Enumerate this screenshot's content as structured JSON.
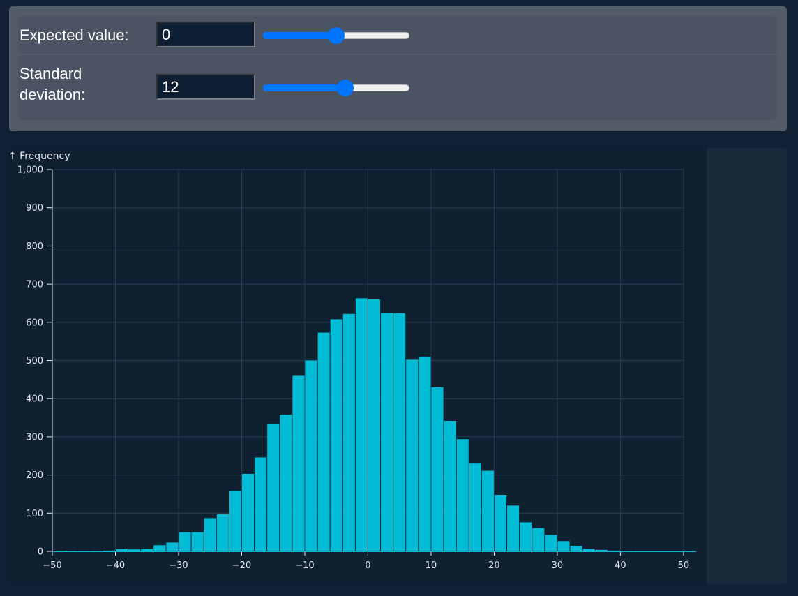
{
  "controls": {
    "mean": {
      "label": "Expected value:",
      "value": "0",
      "slider_fraction": 0.5
    },
    "sd": {
      "label": "Standard deviation:",
      "value": "12",
      "slider_fraction": 0.57
    }
  },
  "colors": {
    "bar": "#00bcd4",
    "grid": "#2c3d50",
    "axis": "#e6e9ee",
    "slider": "#0075ff"
  },
  "chart_data": {
    "type": "bar",
    "ylabel": "↑ Frequency",
    "xlim": [
      -50,
      52
    ],
    "ylim": [
      0,
      1000
    ],
    "x_ticks": [
      -50,
      -40,
      -30,
      -20,
      -10,
      0,
      10,
      20,
      30,
      40,
      50
    ],
    "x_tick_labels": [
      "−50",
      "−40",
      "−30",
      "−20",
      "−10",
      "0",
      "10",
      "20",
      "30",
      "40",
      "50"
    ],
    "y_ticks": [
      0,
      100,
      200,
      300,
      400,
      500,
      600,
      700,
      800,
      900,
      1000
    ],
    "y_tick_labels": [
      "0",
      "100",
      "200",
      "300",
      "400",
      "500",
      "600",
      "700",
      "800",
      "900",
      "1,000"
    ],
    "bin_width": 2,
    "bins": [
      {
        "x0": -48,
        "x1": -46,
        "count": 1
      },
      {
        "x0": -46,
        "x1": -44,
        "count": 1
      },
      {
        "x0": -44,
        "x1": -42,
        "count": 1
      },
      {
        "x0": -42,
        "x1": -40,
        "count": 2
      },
      {
        "x0": -40,
        "x1": -38,
        "count": 6
      },
      {
        "x0": -38,
        "x1": -36,
        "count": 5
      },
      {
        "x0": -36,
        "x1": -34,
        "count": 6
      },
      {
        "x0": -34,
        "x1": -32,
        "count": 16
      },
      {
        "x0": -32,
        "x1": -30,
        "count": 23
      },
      {
        "x0": -30,
        "x1": -28,
        "count": 50
      },
      {
        "x0": -28,
        "x1": -26,
        "count": 50
      },
      {
        "x0": -26,
        "x1": -24,
        "count": 87
      },
      {
        "x0": -24,
        "x1": -22,
        "count": 97
      },
      {
        "x0": -22,
        "x1": -20,
        "count": 158
      },
      {
        "x0": -20,
        "x1": -18,
        "count": 203
      },
      {
        "x0": -18,
        "x1": -16,
        "count": 246
      },
      {
        "x0": -16,
        "x1": -14,
        "count": 333
      },
      {
        "x0": -14,
        "x1": -12,
        "count": 358
      },
      {
        "x0": -12,
        "x1": -10,
        "count": 460
      },
      {
        "x0": -10,
        "x1": -8,
        "count": 500
      },
      {
        "x0": -8,
        "x1": -6,
        "count": 573
      },
      {
        "x0": -6,
        "x1": -4,
        "count": 608
      },
      {
        "x0": -4,
        "x1": -2,
        "count": 622
      },
      {
        "x0": -2,
        "x1": 0,
        "count": 663
      },
      {
        "x0": 0,
        "x1": 2,
        "count": 660
      },
      {
        "x0": 2,
        "x1": 4,
        "count": 625
      },
      {
        "x0": 4,
        "x1": 6,
        "count": 624
      },
      {
        "x0": 6,
        "x1": 8,
        "count": 502
      },
      {
        "x0": 8,
        "x1": 10,
        "count": 510
      },
      {
        "x0": 10,
        "x1": 12,
        "count": 430
      },
      {
        "x0": 12,
        "x1": 14,
        "count": 342
      },
      {
        "x0": 14,
        "x1": 16,
        "count": 294
      },
      {
        "x0": 16,
        "x1": 18,
        "count": 230
      },
      {
        "x0": 18,
        "x1": 20,
        "count": 211
      },
      {
        "x0": 20,
        "x1": 22,
        "count": 148
      },
      {
        "x0": 22,
        "x1": 24,
        "count": 120
      },
      {
        "x0": 24,
        "x1": 26,
        "count": 76
      },
      {
        "x0": 26,
        "x1": 28,
        "count": 61
      },
      {
        "x0": 28,
        "x1": 30,
        "count": 43
      },
      {
        "x0": 30,
        "x1": 32,
        "count": 27
      },
      {
        "x0": 32,
        "x1": 34,
        "count": 14
      },
      {
        "x0": 34,
        "x1": 36,
        "count": 7
      },
      {
        "x0": 36,
        "x1": 38,
        "count": 4
      },
      {
        "x0": 38,
        "x1": 40,
        "count": 2
      },
      {
        "x0": 40,
        "x1": 42,
        "count": 1
      },
      {
        "x0": 42,
        "x1": 44,
        "count": 1
      },
      {
        "x0": 44,
        "x1": 46,
        "count": 1
      },
      {
        "x0": 46,
        "x1": 48,
        "count": 1
      },
      {
        "x0": 48,
        "x1": 50,
        "count": 1
      },
      {
        "x0": 50,
        "x1": 52,
        "count": 1
      }
    ]
  }
}
